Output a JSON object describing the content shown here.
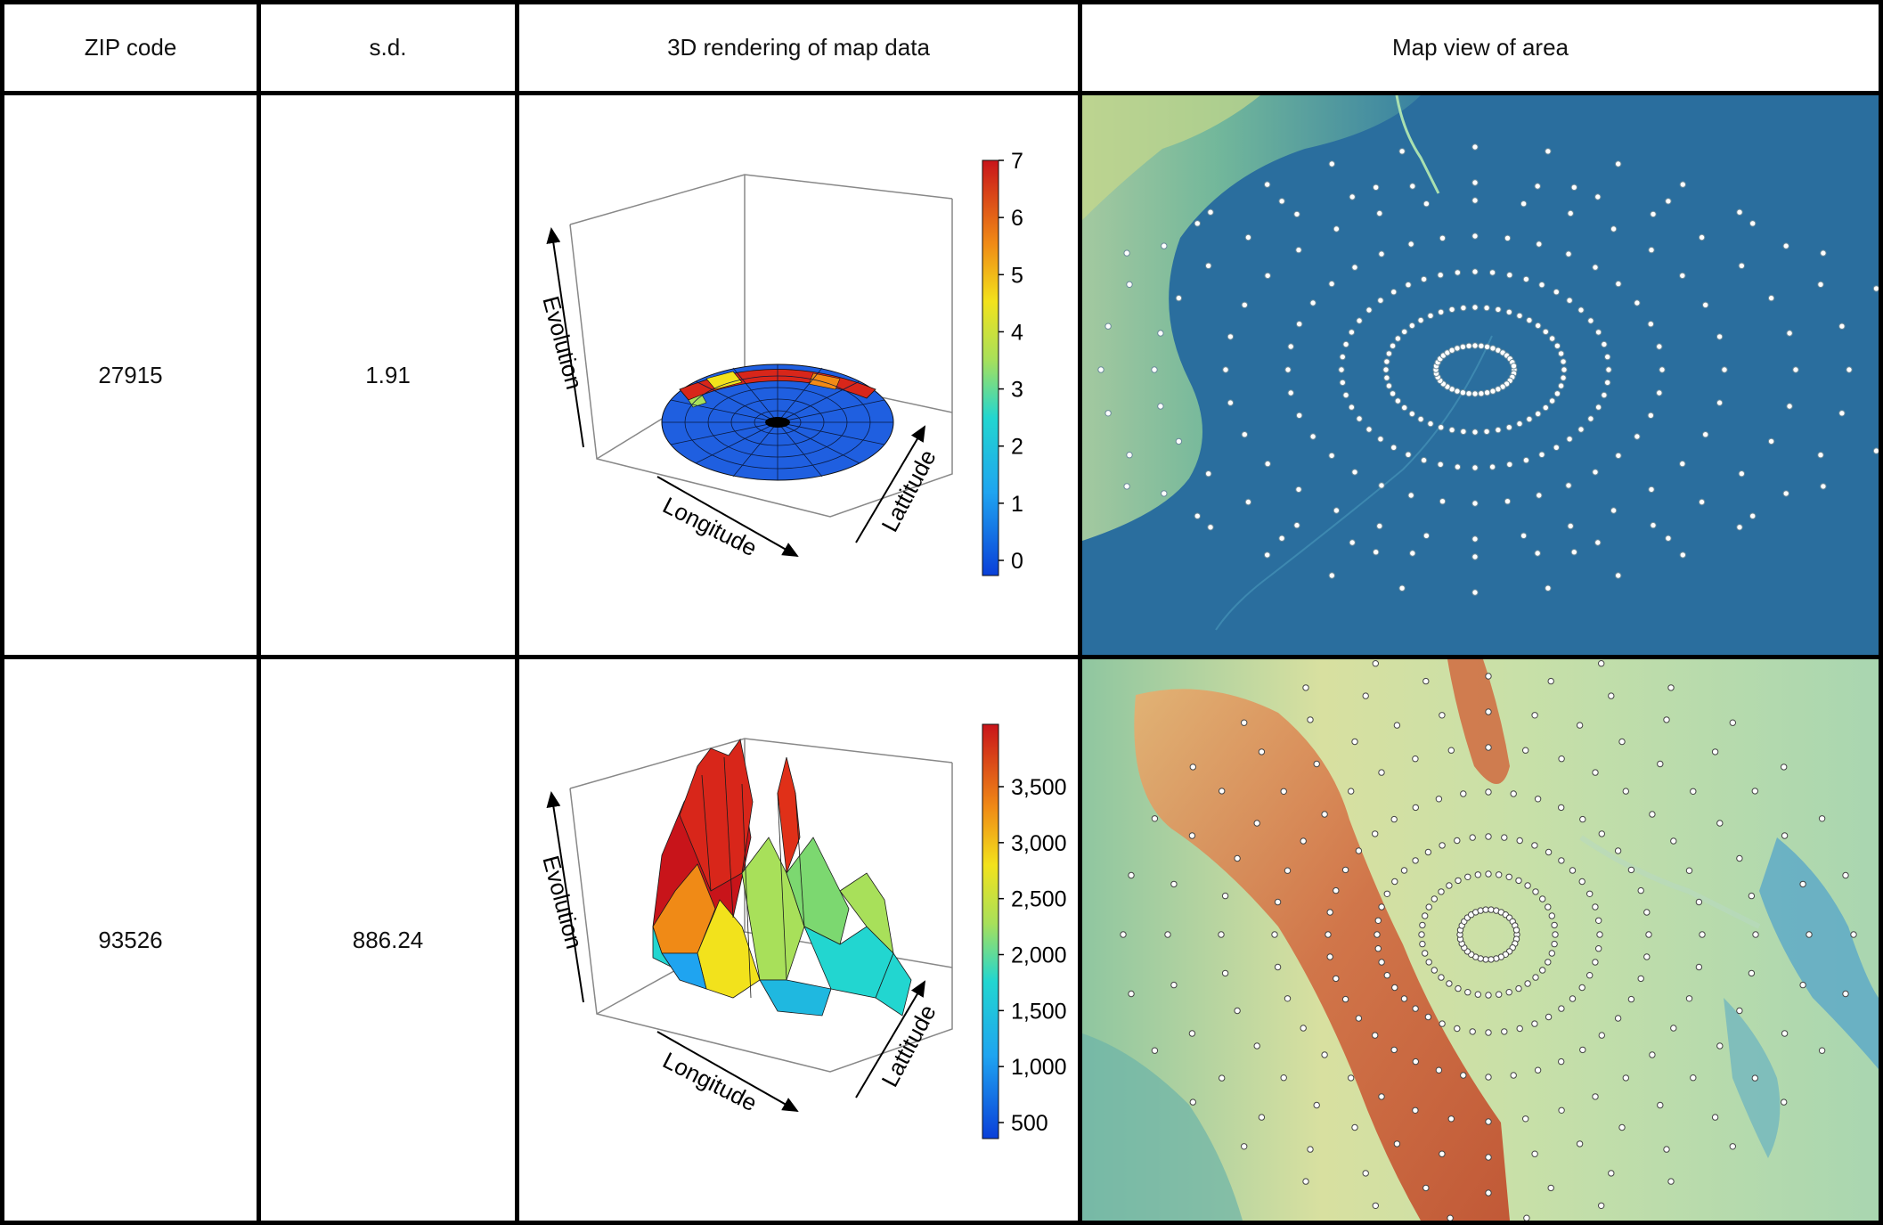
{
  "header": {
    "zip": "ZIP code",
    "sd": "s.d.",
    "render": "3D rendering of map data",
    "map": "Map view of area"
  },
  "rows": [
    {
      "zip": "27915",
      "sd": "1.91",
      "axis_evolution": "Evolution",
      "axis_longitude": "Longitude",
      "axis_latitude": "Lattitude",
      "colorbar_ticks": [
        "0",
        "1",
        "2",
        "3",
        "4",
        "5",
        "6",
        "7"
      ]
    },
    {
      "zip": "93526",
      "sd": "886.24",
      "axis_evolution": "Evolution",
      "axis_longitude": "Longitude",
      "axis_latitude": "Lattitude",
      "colorbar_ticks": [
        "500",
        "1,000",
        "1,500",
        "2,000",
        "2,500",
        "3,000",
        "3,500"
      ]
    }
  ],
  "colors": {
    "ocean": "#2a6e9e",
    "land_low": "#9fd8a8",
    "land_mid": "#e8d08a",
    "land_high": "#c6452a",
    "surface_blue": "#1f5fe0"
  }
}
